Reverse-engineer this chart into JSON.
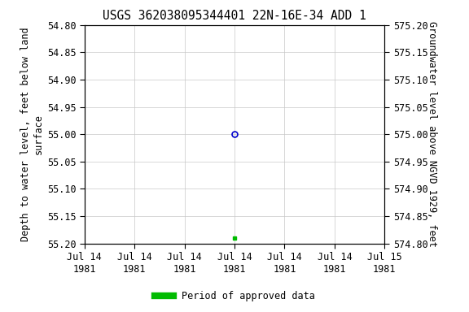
{
  "title": "USGS 362038095344401 22N-16E-34 ADD 1",
  "ylabel_left": "Depth to water level, feet below land\nsurface",
  "ylabel_right": "Groundwater level above NGVD 1929, feet",
  "ylim_left": [
    55.2,
    54.8
  ],
  "ylim_right": [
    574.8,
    575.2
  ],
  "yticks_left": [
    54.8,
    54.85,
    54.9,
    54.95,
    55.0,
    55.05,
    55.1,
    55.15,
    55.2
  ],
  "yticks_right": [
    574.8,
    574.85,
    574.9,
    574.95,
    575.0,
    575.05,
    575.1,
    575.15,
    575.2
  ],
  "xtick_labels": [
    "Jul 14\n1981",
    "Jul 14\n1981",
    "Jul 14\n1981",
    "Jul 14\n1981",
    "Jul 14\n1981",
    "Jul 14\n1981",
    "Jul 15\n1981"
  ],
  "point_blue_x": 3.0,
  "point_blue_y": 55.0,
  "point_green_x": 3.0,
  "point_green_y": 55.19,
  "xlim": [
    0,
    6
  ],
  "xtick_positions": [
    0,
    1,
    2,
    3,
    4,
    5,
    6
  ],
  "legend_label": "Period of approved data",
  "legend_color": "#00bb00",
  "bg_color": "#ffffff",
  "grid_color": "#c8c8c8",
  "point_blue_color": "#0000cc",
  "point_green_color": "#00bb00",
  "title_fontsize": 10.5,
  "axis_label_fontsize": 8.5,
  "tick_fontsize": 8.5
}
